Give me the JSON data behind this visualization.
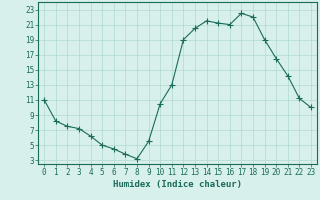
{
  "x": [
    0,
    1,
    2,
    3,
    4,
    5,
    6,
    7,
    8,
    9,
    10,
    11,
    12,
    13,
    14,
    15,
    16,
    17,
    18,
    19,
    20,
    21,
    22,
    23
  ],
  "y": [
    11,
    8.2,
    7.5,
    7.2,
    6.2,
    5.0,
    4.5,
    3.8,
    3.2,
    5.5,
    10.5,
    13.0,
    19.0,
    20.5,
    21.5,
    21.2,
    21.0,
    22.5,
    22.0,
    19.0,
    16.5,
    14.2,
    11.2,
    10.0
  ],
  "line_color": "#1a6b5a",
  "marker": "+",
  "marker_size": 4,
  "bg_color": "#d8f0eb",
  "grid_color": "#b0d8d0",
  "xlabel": "Humidex (Indice chaleur)",
  "yticks": [
    3,
    5,
    7,
    9,
    11,
    13,
    15,
    17,
    19,
    21,
    23
  ],
  "xticks": [
    0,
    1,
    2,
    3,
    4,
    5,
    6,
    7,
    8,
    9,
    10,
    11,
    12,
    13,
    14,
    15,
    16,
    17,
    18,
    19,
    20,
    21,
    22,
    23
  ],
  "ylim": [
    2.5,
    24.0
  ],
  "xlim": [
    -0.5,
    23.5
  ],
  "axis_color": "#1a6b5a",
  "tick_label_color": "#1a6b5a",
  "label_fontsize": 6.5,
  "tick_fontsize": 5.5
}
